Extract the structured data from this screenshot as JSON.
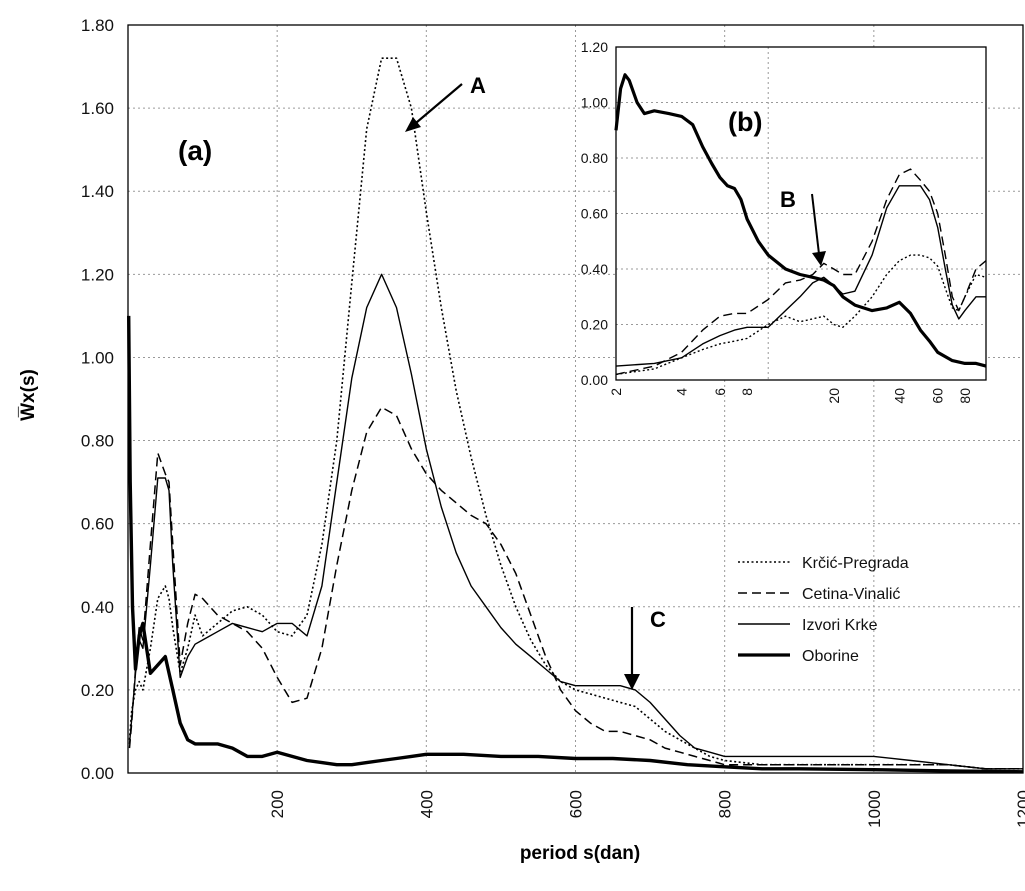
{
  "chart_data": [
    {
      "id": "a",
      "type": "line",
      "panel_label": "(a)",
      "xlabel": "period s(dan)",
      "ylabel": "W̅x(s)",
      "xlim": [
        0,
        1200
      ],
      "ylim": [
        0,
        1.8
      ],
      "xticks": [
        "200",
        "400",
        "600",
        "800",
        "1000",
        "1200"
      ],
      "yticks": [
        "0.00",
        "0.20",
        "0.40",
        "0.60",
        "0.80",
        "1.00",
        "1.20",
        "1.40",
        "1.60",
        "1.80"
      ],
      "grid": true,
      "legend_position": "center-right",
      "series": [
        {
          "name": "Krčić-Pregrada",
          "style": "dotted",
          "x": [
            2,
            5,
            10,
            15,
            20,
            30,
            40,
            50,
            55,
            60,
            70,
            80,
            90,
            100,
            120,
            140,
            160,
            180,
            200,
            220,
            240,
            260,
            280,
            300,
            320,
            340,
            360,
            380,
            400,
            420,
            440,
            460,
            480,
            500,
            520,
            540,
            560,
            580,
            600,
            620,
            640,
            660,
            680,
            700,
            720,
            740,
            760,
            780,
            800,
            850,
            900,
            950,
            1000,
            1050,
            1100,
            1150,
            1200
          ],
          "y": [
            0.08,
            0.15,
            0.2,
            0.22,
            0.2,
            0.3,
            0.42,
            0.45,
            0.42,
            0.35,
            0.24,
            0.3,
            0.38,
            0.33,
            0.36,
            0.39,
            0.4,
            0.38,
            0.34,
            0.33,
            0.38,
            0.55,
            0.8,
            1.18,
            1.55,
            1.72,
            1.72,
            1.6,
            1.35,
            1.12,
            0.92,
            0.76,
            0.62,
            0.5,
            0.4,
            0.32,
            0.26,
            0.22,
            0.2,
            0.19,
            0.18,
            0.17,
            0.16,
            0.13,
            0.1,
            0.08,
            0.06,
            0.04,
            0.03,
            0.02,
            0.02,
            0.02,
            0.02,
            0.02,
            0.02,
            0.01,
            0.01
          ]
        },
        {
          "name": "Cetina-Vinalić",
          "style": "dashed",
          "x": [
            2,
            5,
            10,
            15,
            20,
            30,
            40,
            50,
            55,
            60,
            70,
            80,
            90,
            100,
            120,
            140,
            160,
            180,
            200,
            220,
            240,
            260,
            280,
            300,
            320,
            340,
            360,
            380,
            400,
            420,
            440,
            460,
            480,
            500,
            520,
            540,
            560,
            580,
            600,
            620,
            640,
            660,
            680,
            700,
            720,
            740,
            760,
            780,
            800,
            850,
            900,
            950,
            1000,
            1050,
            1100,
            1150,
            1200
          ],
          "y": [
            0.06,
            0.12,
            0.25,
            0.35,
            0.32,
            0.55,
            0.77,
            0.72,
            0.7,
            0.55,
            0.26,
            0.36,
            0.43,
            0.42,
            0.38,
            0.36,
            0.34,
            0.3,
            0.23,
            0.17,
            0.18,
            0.3,
            0.5,
            0.68,
            0.82,
            0.88,
            0.86,
            0.78,
            0.72,
            0.68,
            0.65,
            0.62,
            0.6,
            0.55,
            0.48,
            0.38,
            0.28,
            0.2,
            0.15,
            0.12,
            0.1,
            0.1,
            0.09,
            0.08,
            0.06,
            0.05,
            0.04,
            0.03,
            0.02,
            0.02,
            0.02,
            0.02,
            0.02,
            0.02,
            0.02,
            0.01,
            0.01
          ]
        },
        {
          "name": "Izvori Krke",
          "style": "solid",
          "x": [
            2,
            5,
            10,
            15,
            20,
            30,
            40,
            50,
            55,
            60,
            70,
            80,
            90,
            100,
            120,
            140,
            160,
            180,
            200,
            220,
            240,
            260,
            280,
            300,
            320,
            340,
            360,
            380,
            400,
            420,
            440,
            460,
            480,
            500,
            520,
            540,
            560,
            580,
            600,
            620,
            640,
            660,
            680,
            700,
            720,
            740,
            760,
            780,
            800,
            850,
            900,
            950,
            1000,
            1050,
            1100,
            1150,
            1200
          ],
          "y": [
            0.07,
            0.13,
            0.24,
            0.32,
            0.3,
            0.5,
            0.71,
            0.71,
            0.68,
            0.5,
            0.23,
            0.28,
            0.31,
            0.32,
            0.34,
            0.36,
            0.35,
            0.34,
            0.36,
            0.36,
            0.33,
            0.45,
            0.7,
            0.95,
            1.12,
            1.2,
            1.12,
            0.96,
            0.78,
            0.64,
            0.53,
            0.45,
            0.4,
            0.35,
            0.31,
            0.28,
            0.25,
            0.22,
            0.21,
            0.21,
            0.21,
            0.21,
            0.2,
            0.17,
            0.13,
            0.09,
            0.06,
            0.05,
            0.04,
            0.04,
            0.04,
            0.04,
            0.04,
            0.03,
            0.02,
            0.01,
            0.01
          ]
        },
        {
          "name": "Oborine",
          "style": "bold",
          "x": [
            1,
            3,
            6,
            10,
            15,
            20,
            25,
            30,
            40,
            50,
            60,
            70,
            80,
            90,
            100,
            120,
            140,
            160,
            180,
            200,
            220,
            240,
            260,
            280,
            300,
            320,
            340,
            360,
            380,
            400,
            450,
            500,
            550,
            600,
            650,
            700,
            750,
            800,
            850,
            900,
            1000,
            1100,
            1200
          ],
          "y": [
            1.1,
            0.7,
            0.4,
            0.25,
            0.33,
            0.36,
            0.3,
            0.24,
            0.26,
            0.28,
            0.2,
            0.12,
            0.08,
            0.07,
            0.07,
            0.07,
            0.06,
            0.04,
            0.04,
            0.05,
            0.04,
            0.03,
            0.025,
            0.02,
            0.02,
            0.025,
            0.03,
            0.035,
            0.04,
            0.045,
            0.045,
            0.04,
            0.04,
            0.035,
            0.035,
            0.03,
            0.02,
            0.015,
            0.01,
            0.01,
            0.008,
            0.005,
            0.003
          ]
        }
      ],
      "annotations": [
        {
          "label": "A",
          "x": 345,
          "y": 1.72
        },
        {
          "label": "C",
          "x": 680,
          "y": 0.2
        }
      ]
    },
    {
      "id": "b",
      "type": "line",
      "panel_label": "(b)",
      "xscale": "log",
      "xlim": [
        2,
        100
      ],
      "ylim": [
        0,
        1.2
      ],
      "xticks": [
        "2",
        "4",
        "6",
        "8",
        "20",
        "40",
        "60",
        "80"
      ],
      "yticks": [
        "0.00",
        "0.20",
        "0.40",
        "0.60",
        "0.80",
        "1.00",
        "1.20"
      ],
      "grid": true,
      "series": [
        {
          "name": "Krčić-Pregrada",
          "style": "dotted",
          "x": [
            2,
            3,
            4,
            5,
            6,
            7,
            8,
            10,
            12,
            14,
            16,
            18,
            20,
            22,
            25,
            30,
            35,
            40,
            45,
            50,
            55,
            60,
            65,
            70,
            75,
            80,
            90,
            100
          ],
          "y": [
            0.02,
            0.04,
            0.08,
            0.11,
            0.13,
            0.14,
            0.15,
            0.2,
            0.23,
            0.21,
            0.22,
            0.23,
            0.2,
            0.19,
            0.23,
            0.3,
            0.38,
            0.43,
            0.45,
            0.45,
            0.44,
            0.41,
            0.33,
            0.26,
            0.25,
            0.3,
            0.38,
            0.37
          ]
        },
        {
          "name": "Cetina-Vinalić",
          "style": "dashed",
          "x": [
            2,
            3,
            4,
            5,
            6,
            7,
            8,
            10,
            12,
            14,
            16,
            18,
            20,
            22,
            25,
            30,
            35,
            40,
            45,
            50,
            55,
            60,
            65,
            70,
            75,
            80,
            90,
            100
          ],
          "y": [
            0.02,
            0.05,
            0.1,
            0.18,
            0.23,
            0.24,
            0.24,
            0.29,
            0.35,
            0.36,
            0.38,
            0.42,
            0.4,
            0.38,
            0.38,
            0.5,
            0.65,
            0.74,
            0.76,
            0.72,
            0.68,
            0.6,
            0.45,
            0.3,
            0.25,
            0.3,
            0.4,
            0.43
          ]
        },
        {
          "name": "Izvori Krke",
          "style": "solid",
          "x": [
            2,
            3,
            4,
            5,
            6,
            7,
            8,
            10,
            12,
            14,
            16,
            18,
            20,
            22,
            25,
            30,
            35,
            40,
            45,
            50,
            55,
            60,
            65,
            70,
            75,
            80,
            90,
            100
          ],
          "y": [
            0.05,
            0.06,
            0.08,
            0.13,
            0.16,
            0.18,
            0.19,
            0.19,
            0.25,
            0.3,
            0.35,
            0.37,
            0.34,
            0.31,
            0.32,
            0.45,
            0.62,
            0.7,
            0.7,
            0.7,
            0.65,
            0.55,
            0.4,
            0.27,
            0.22,
            0.25,
            0.3,
            0.3
          ]
        },
        {
          "name": "Oborine",
          "style": "bold",
          "x": [
            2,
            2.1,
            2.2,
            2.3,
            2.5,
            2.7,
            3,
            3.5,
            4,
            4.5,
            5,
            5.5,
            6,
            6.5,
            7,
            7.5,
            8,
            9,
            10,
            12,
            14,
            16,
            18,
            20,
            22,
            25,
            30,
            35,
            40,
            45,
            50,
            55,
            60,
            70,
            80,
            90,
            100
          ],
          "y": [
            0.9,
            1.05,
            1.1,
            1.08,
            1.0,
            0.96,
            0.97,
            0.96,
            0.95,
            0.92,
            0.84,
            0.78,
            0.73,
            0.7,
            0.69,
            0.65,
            0.58,
            0.5,
            0.45,
            0.4,
            0.38,
            0.37,
            0.36,
            0.34,
            0.3,
            0.27,
            0.25,
            0.26,
            0.28,
            0.24,
            0.18,
            0.14,
            0.1,
            0.07,
            0.06,
            0.06,
            0.05
          ]
        }
      ],
      "annotations": [
        {
          "label": "B",
          "x": 17,
          "y": 0.42
        }
      ]
    }
  ]
}
